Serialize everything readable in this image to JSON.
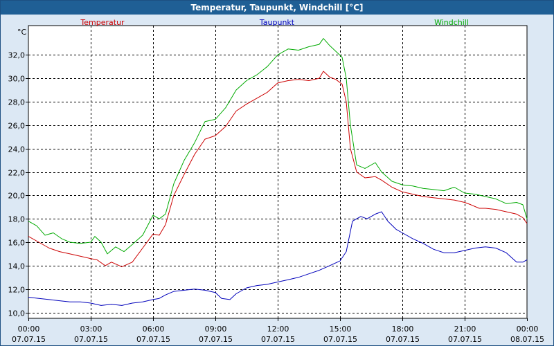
{
  "window": {
    "title": "Temperatur, Taupunkt, Windchill [°C]"
  },
  "chart_data": {
    "type": "line",
    "title": "Temperatur, Taupunkt, Windchill [°C]",
    "ylabel": "°C",
    "xlabel": "",
    "xlim": [
      0,
      24
    ],
    "ylim": [
      9.5,
      34.5
    ],
    "grid": true,
    "x_ticks": [
      {
        "x": 0,
        "time": "00:00",
        "date": "07.07.15"
      },
      {
        "x": 3,
        "time": "03:00",
        "date": "07.07.15"
      },
      {
        "x": 6,
        "time": "06:00",
        "date": "07.07.15"
      },
      {
        "x": 9,
        "time": "09:00",
        "date": "07.07.15"
      },
      {
        "x": 12,
        "time": "12:00",
        "date": "07.07.15"
      },
      {
        "x": 15,
        "time": "15:00",
        "date": "07.07.15"
      },
      {
        "x": 18,
        "time": "18:00",
        "date": "07.07.15"
      },
      {
        "x": 21,
        "time": "21:00",
        "date": "07.07.15"
      },
      {
        "x": 24,
        "time": "00:00",
        "date": "08.07.15"
      }
    ],
    "y_ticks": [
      "10,0",
      "12,0",
      "14,0",
      "16,0",
      "18,0",
      "20,0",
      "22,0",
      "24,0",
      "26,0",
      "28,0",
      "30,0",
      "32,0"
    ],
    "y_tick_values": [
      10,
      12,
      14,
      16,
      18,
      20,
      22,
      24,
      26,
      28,
      30,
      32
    ],
    "series": [
      {
        "name": "Temperatur",
        "color": "#cc0000",
        "points": [
          [
            0,
            16.5
          ],
          [
            0.5,
            16.0
          ],
          [
            1.0,
            15.5
          ],
          [
            1.5,
            15.2
          ],
          [
            2.0,
            15.0
          ],
          [
            2.5,
            14.8
          ],
          [
            3.0,
            14.6
          ],
          [
            3.3,
            14.5
          ],
          [
            3.7,
            14.0
          ],
          [
            4.0,
            14.3
          ],
          [
            4.5,
            13.9
          ],
          [
            5.0,
            14.3
          ],
          [
            5.5,
            15.5
          ],
          [
            6.0,
            16.7
          ],
          [
            6.3,
            16.6
          ],
          [
            6.6,
            17.5
          ],
          [
            7.0,
            20.0
          ],
          [
            7.5,
            21.8
          ],
          [
            8.0,
            23.5
          ],
          [
            8.5,
            24.8
          ],
          [
            9.0,
            25.1
          ],
          [
            9.5,
            25.9
          ],
          [
            10.0,
            27.2
          ],
          [
            10.5,
            27.8
          ],
          [
            11.0,
            28.3
          ],
          [
            11.5,
            28.8
          ],
          [
            12.0,
            29.6
          ],
          [
            12.5,
            29.8
          ],
          [
            13.0,
            29.9
          ],
          [
            13.5,
            29.8
          ],
          [
            14.0,
            30.0
          ],
          [
            14.2,
            30.6
          ],
          [
            14.5,
            30.1
          ],
          [
            14.8,
            29.9
          ],
          [
            15.1,
            29.5
          ],
          [
            15.3,
            28.0
          ],
          [
            15.5,
            24.0
          ],
          [
            15.8,
            22.0
          ],
          [
            16.2,
            21.5
          ],
          [
            16.7,
            21.6
          ],
          [
            17.0,
            21.3
          ],
          [
            17.5,
            20.7
          ],
          [
            18.0,
            20.3
          ],
          [
            18.5,
            20.1
          ],
          [
            19.0,
            19.9
          ],
          [
            19.5,
            19.8
          ],
          [
            20.0,
            19.7
          ],
          [
            20.5,
            19.6
          ],
          [
            21.0,
            19.4
          ],
          [
            21.3,
            19.2
          ],
          [
            21.7,
            18.9
          ],
          [
            22.0,
            18.9
          ],
          [
            22.5,
            18.8
          ],
          [
            23.0,
            18.6
          ],
          [
            23.5,
            18.4
          ],
          [
            23.8,
            18.1
          ],
          [
            24.0,
            17.6
          ]
        ]
      },
      {
        "name": "Taupunkt",
        "color": "#0000bb",
        "points": [
          [
            0,
            11.3
          ],
          [
            0.5,
            11.2
          ],
          [
            1.0,
            11.1
          ],
          [
            1.5,
            11.0
          ],
          [
            2.0,
            10.9
          ],
          [
            2.5,
            10.9
          ],
          [
            3.0,
            10.8
          ],
          [
            3.5,
            10.6
          ],
          [
            4.0,
            10.7
          ],
          [
            4.5,
            10.6
          ],
          [
            5.0,
            10.8
          ],
          [
            5.5,
            10.9
          ],
          [
            6.0,
            11.1
          ],
          [
            6.3,
            11.2
          ],
          [
            6.6,
            11.5
          ],
          [
            7.0,
            11.8
          ],
          [
            7.5,
            11.9
          ],
          [
            8.0,
            12.0
          ],
          [
            8.5,
            11.9
          ],
          [
            9.0,
            11.7
          ],
          [
            9.3,
            11.2
          ],
          [
            9.7,
            11.1
          ],
          [
            10.0,
            11.6
          ],
          [
            10.5,
            12.1
          ],
          [
            11.0,
            12.3
          ],
          [
            11.5,
            12.4
          ],
          [
            12.0,
            12.6
          ],
          [
            12.5,
            12.8
          ],
          [
            13.0,
            13.0
          ],
          [
            13.5,
            13.3
          ],
          [
            14.0,
            13.6
          ],
          [
            14.5,
            14.0
          ],
          [
            15.0,
            14.4
          ],
          [
            15.3,
            15.2
          ],
          [
            15.6,
            17.8
          ],
          [
            16.0,
            18.2
          ],
          [
            16.3,
            18.0
          ],
          [
            16.7,
            18.4
          ],
          [
            17.0,
            18.6
          ],
          [
            17.3,
            17.8
          ],
          [
            17.7,
            17.1
          ],
          [
            18.0,
            16.8
          ],
          [
            18.5,
            16.3
          ],
          [
            19.0,
            15.9
          ],
          [
            19.5,
            15.4
          ],
          [
            20.0,
            15.1
          ],
          [
            20.5,
            15.1
          ],
          [
            21.0,
            15.3
          ],
          [
            21.5,
            15.5
          ],
          [
            22.0,
            15.6
          ],
          [
            22.5,
            15.5
          ],
          [
            23.0,
            15.1
          ],
          [
            23.5,
            14.3
          ],
          [
            23.8,
            14.3
          ],
          [
            24.0,
            14.5
          ]
        ]
      },
      {
        "name": "Windchill",
        "color": "#00aa00",
        "points": [
          [
            0,
            17.8
          ],
          [
            0.4,
            17.4
          ],
          [
            0.8,
            16.6
          ],
          [
            1.2,
            16.8
          ],
          [
            1.6,
            16.3
          ],
          [
            2.0,
            16.0
          ],
          [
            2.5,
            15.9
          ],
          [
            3.0,
            16.0
          ],
          [
            3.2,
            16.5
          ],
          [
            3.5,
            16.0
          ],
          [
            3.8,
            15.0
          ],
          [
            4.2,
            15.6
          ],
          [
            4.6,
            15.2
          ],
          [
            5.0,
            15.8
          ],
          [
            5.5,
            16.6
          ],
          [
            6.0,
            18.3
          ],
          [
            6.3,
            18.0
          ],
          [
            6.6,
            18.4
          ],
          [
            7.0,
            21.0
          ],
          [
            7.5,
            23.0
          ],
          [
            8.0,
            24.5
          ],
          [
            8.5,
            26.3
          ],
          [
            9.0,
            26.5
          ],
          [
            9.5,
            27.5
          ],
          [
            10.0,
            29.0
          ],
          [
            10.5,
            29.8
          ],
          [
            11.0,
            30.3
          ],
          [
            11.5,
            31.0
          ],
          [
            12.0,
            32.0
          ],
          [
            12.5,
            32.5
          ],
          [
            13.0,
            32.4
          ],
          [
            13.5,
            32.7
          ],
          [
            14.0,
            32.9
          ],
          [
            14.2,
            33.4
          ],
          [
            14.5,
            32.8
          ],
          [
            14.8,
            32.3
          ],
          [
            15.1,
            31.8
          ],
          [
            15.3,
            30.0
          ],
          [
            15.5,
            26.0
          ],
          [
            15.8,
            22.6
          ],
          [
            16.2,
            22.3
          ],
          [
            16.7,
            22.8
          ],
          [
            17.0,
            22.0
          ],
          [
            17.5,
            21.2
          ],
          [
            18.0,
            20.9
          ],
          [
            18.5,
            20.8
          ],
          [
            19.0,
            20.6
          ],
          [
            19.5,
            20.5
          ],
          [
            20.0,
            20.4
          ],
          [
            20.5,
            20.7
          ],
          [
            21.0,
            20.2
          ],
          [
            21.5,
            20.1
          ],
          [
            22.0,
            19.9
          ],
          [
            22.5,
            19.7
          ],
          [
            23.0,
            19.3
          ],
          [
            23.5,
            19.4
          ],
          [
            23.8,
            19.2
          ],
          [
            24.0,
            18.0
          ]
        ]
      }
    ]
  }
}
